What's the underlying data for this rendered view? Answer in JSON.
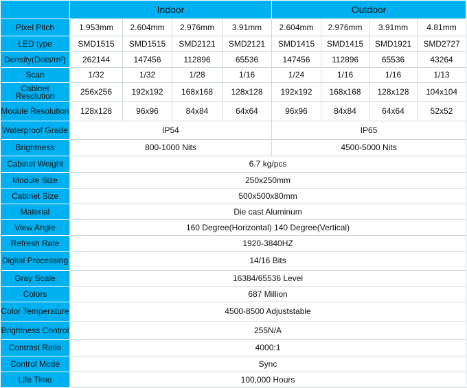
{
  "header": {
    "indoor": "Indoor",
    "outdoor": "Outdoor"
  },
  "rows": [
    {
      "label": "Pixel Pitch",
      "cells": [
        "1.953mm",
        "2.604mm",
        "2.976mm",
        "3.91mm",
        "2.604mm",
        "2.976mm",
        "3.91mm",
        "4.81mm"
      ]
    },
    {
      "label": "LED type",
      "cells": [
        "SMD1515",
        "SMD1515",
        "SMD2121",
        "SMD2121",
        "SMD1415",
        "SMD1415",
        "SMD1921",
        "SMD2727"
      ]
    },
    {
      "label": "Density(Dots/m²)",
      "cells": [
        "262144",
        "147456",
        "112896",
        "65536",
        "147456",
        "112896",
        "65536",
        "43264"
      ]
    },
    {
      "label": "Scan",
      "cells": [
        "1/32",
        "1/32",
        "1/28",
        "1/16",
        "1/24",
        "1/16",
        "1/16",
        "1/13"
      ]
    },
    {
      "label": "Cabinet Resolution",
      "cells": [
        "256x256",
        "192x192",
        "168x168",
        "128x128",
        "192x192",
        "168x168",
        "128x128",
        "104x104"
      ]
    },
    {
      "label": "Module Resolution",
      "cells": [
        "128x128",
        "96x96",
        "84x84",
        "64x64",
        "96x96",
        "84x84",
        "64x64",
        "52x52"
      ]
    },
    {
      "label": "Waterproof Grade",
      "cells": [
        "IP54",
        "IP65"
      ]
    },
    {
      "label": "Brightness",
      "cells": [
        "800-1000 Nits",
        "4500-5000 Nits"
      ]
    },
    {
      "label": "Cabinet Weight",
      "cells": [
        "6.7 kg/pcs"
      ]
    },
    {
      "label": "Module Size",
      "cells": [
        "250x250mm"
      ]
    },
    {
      "label": "Cabinet Size",
      "cells": [
        "500x500x80mm"
      ]
    },
    {
      "label": "Material",
      "cells": [
        "Die cast Aluminum"
      ]
    },
    {
      "label": "View Angle",
      "cells": [
        "160 Degree(Horizontal) 140 Degree(Vertical)"
      ]
    },
    {
      "label": "Refresh Rate",
      "cells": [
        "1920-3840HZ"
      ]
    },
    {
      "label": "Digital Processing",
      "cells": [
        "14/16 Bits"
      ]
    },
    {
      "label": "Gray Scale",
      "cells": [
        "16384/65536 Level"
      ]
    },
    {
      "label": "Colors",
      "cells": [
        "687 Million"
      ]
    },
    {
      "label": "Color Temperature",
      "cells": [
        "4500-8500 Adjuststable"
      ]
    },
    {
      "label": "Brightness Control",
      "cells": [
        "255N/A"
      ]
    },
    {
      "label": "Contrast Ratio",
      "cells": [
        "4000:1"
      ]
    },
    {
      "label": "Control Mode",
      "cells": [
        "Sync"
      ]
    },
    {
      "label": "Life Time",
      "cells": [
        "100,000 Hours"
      ]
    }
  ],
  "colors": {
    "label_bg": "#00b0f0"
  }
}
